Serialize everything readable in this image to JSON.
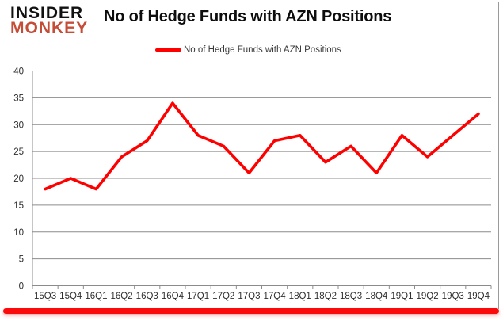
{
  "logo": {
    "line1": "INSIDER",
    "line2": "MONKEY",
    "accent_color": "#c54d38"
  },
  "title": "No of Hedge Funds with AZN Positions",
  "legend": {
    "label": "No of Hedge Funds with AZN Positions",
    "marker_color": "#fe0000"
  },
  "chart_data": {
    "type": "line",
    "title": "No of Hedge Funds with AZN Positions",
    "categories": [
      "15Q3",
      "15Q4",
      "16Q1",
      "16Q2",
      "16Q3",
      "16Q4",
      "17Q1",
      "17Q2",
      "17Q3",
      "17Q4",
      "18Q1",
      "18Q2",
      "18Q3",
      "18Q4",
      "19Q1",
      "19Q2",
      "19Q3",
      "19Q4"
    ],
    "series": [
      {
        "name": "No of Hedge Funds with AZN Positions",
        "color": "#fe0000",
        "values": [
          18,
          20,
          18,
          24,
          27,
          34,
          28,
          26,
          21,
          27,
          28,
          23,
          26,
          21,
          28,
          24,
          28,
          32
        ]
      }
    ],
    "ylim": [
      0,
      40
    ],
    "yticks": [
      0,
      5,
      10,
      15,
      20,
      25,
      30,
      35,
      40
    ],
    "grid": "horizontal",
    "legend_position": "top-center",
    "axis_color": "#8c8c8c",
    "label_color": "#2e2e2e"
  },
  "frame": {
    "bottom_bar_color": "#fa0a0a"
  }
}
